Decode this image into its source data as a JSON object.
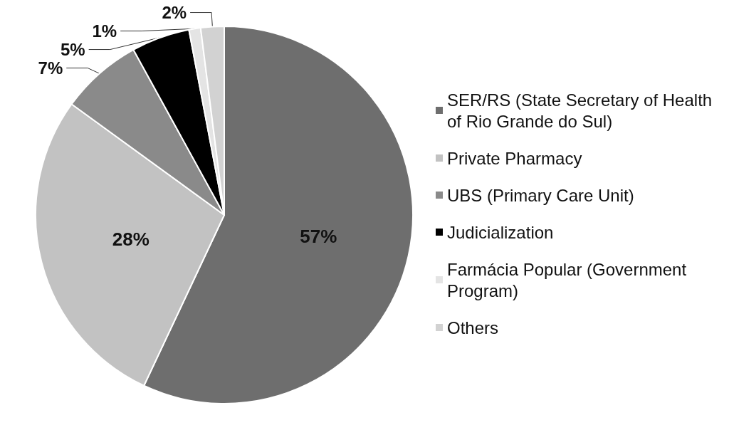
{
  "chart_data": {
    "type": "pie",
    "categories": [
      "SER/RS (State Secretary of Health of Rio Grande do Sul)",
      "Private Pharmacy",
      "UBS (Primary Care Unit)",
      "Judicialization",
      "Farmácia Popular (Government Program)",
      "Others"
    ],
    "values": [
      57,
      28,
      7,
      5,
      1,
      2
    ],
    "value_labels": [
      "57%",
      "28%",
      "7%",
      "5%",
      "1%",
      "2%"
    ],
    "colors": [
      "#6e6e6e",
      "#c2c2c2",
      "#8a8a8a",
      "#000000",
      "#e4e4e4",
      "#d2d2d2"
    ],
    "legend": "right"
  }
}
